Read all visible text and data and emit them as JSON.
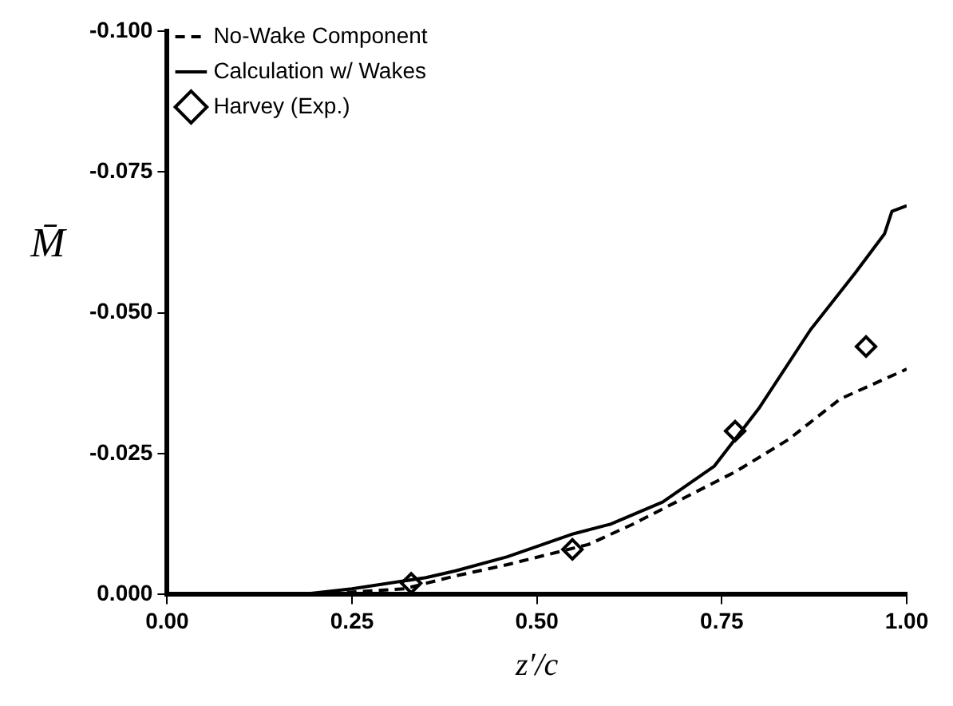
{
  "chart_data": {
    "type": "line",
    "xlabel": "z′/c",
    "ylabel": "M̄",
    "xlim": [
      0,
      1
    ],
    "xticks": [
      {
        "value": 0,
        "label": "0.00"
      },
      {
        "value": 0.25,
        "label": "0.25"
      },
      {
        "value": 0.5,
        "label": "0.50"
      },
      {
        "value": 0.75,
        "label": "0.75"
      },
      {
        "value": 1,
        "label": "1.00"
      }
    ],
    "ylim": [
      0,
      -0.1
    ],
    "yticks": [
      {
        "value": 0,
        "label": "0.000"
      },
      {
        "value": -0.025,
        "label": "-0.025"
      },
      {
        "value": -0.05,
        "label": "-0.050"
      },
      {
        "value": -0.075,
        "label": "-0.075"
      },
      {
        "value": -0.1,
        "label": "-0.100"
      }
    ],
    "grid": false,
    "legend": "top left",
    "series": [
      {
        "name": "No-Wake Component",
        "color": "#000000",
        "line_style": "dashed",
        "marker": "none",
        "x": [
          0.2,
          0.32,
          0.39,
          0.46,
          0.57,
          0.63,
          0.7,
          0.77,
          0.84,
          0.91,
          1.0
        ],
        "values": [
          0,
          -0.001,
          -0.0033,
          -0.0053,
          -0.0089,
          -0.0125,
          -0.0172,
          -0.0219,
          -0.0275,
          -0.0347,
          -0.04
        ]
      },
      {
        "name": "Calculation w/ Wakes",
        "color": "#000000",
        "line_style": "solid",
        "marker": "none",
        "x": [
          0.18,
          0.25,
          0.35,
          0.39,
          0.46,
          0.55,
          0.6,
          0.67,
          0.74,
          0.8,
          0.87,
          0.93,
          0.97,
          0.98,
          1.0
        ],
        "values": [
          0,
          -0.001,
          -0.003,
          -0.0042,
          -0.0067,
          -0.0108,
          -0.0125,
          -0.0164,
          -0.0228,
          -0.033,
          -0.047,
          -0.057,
          -0.064,
          -0.068,
          -0.069
        ]
      },
      {
        "name": "Harvey (Exp.)",
        "type": "scatter",
        "color": "#000000",
        "marker": "diamond",
        "x": [
          0.33,
          0.548,
          0.768,
          0.945
        ],
        "values": [
          -0.002,
          -0.008,
          -0.029,
          -0.044
        ]
      }
    ]
  }
}
